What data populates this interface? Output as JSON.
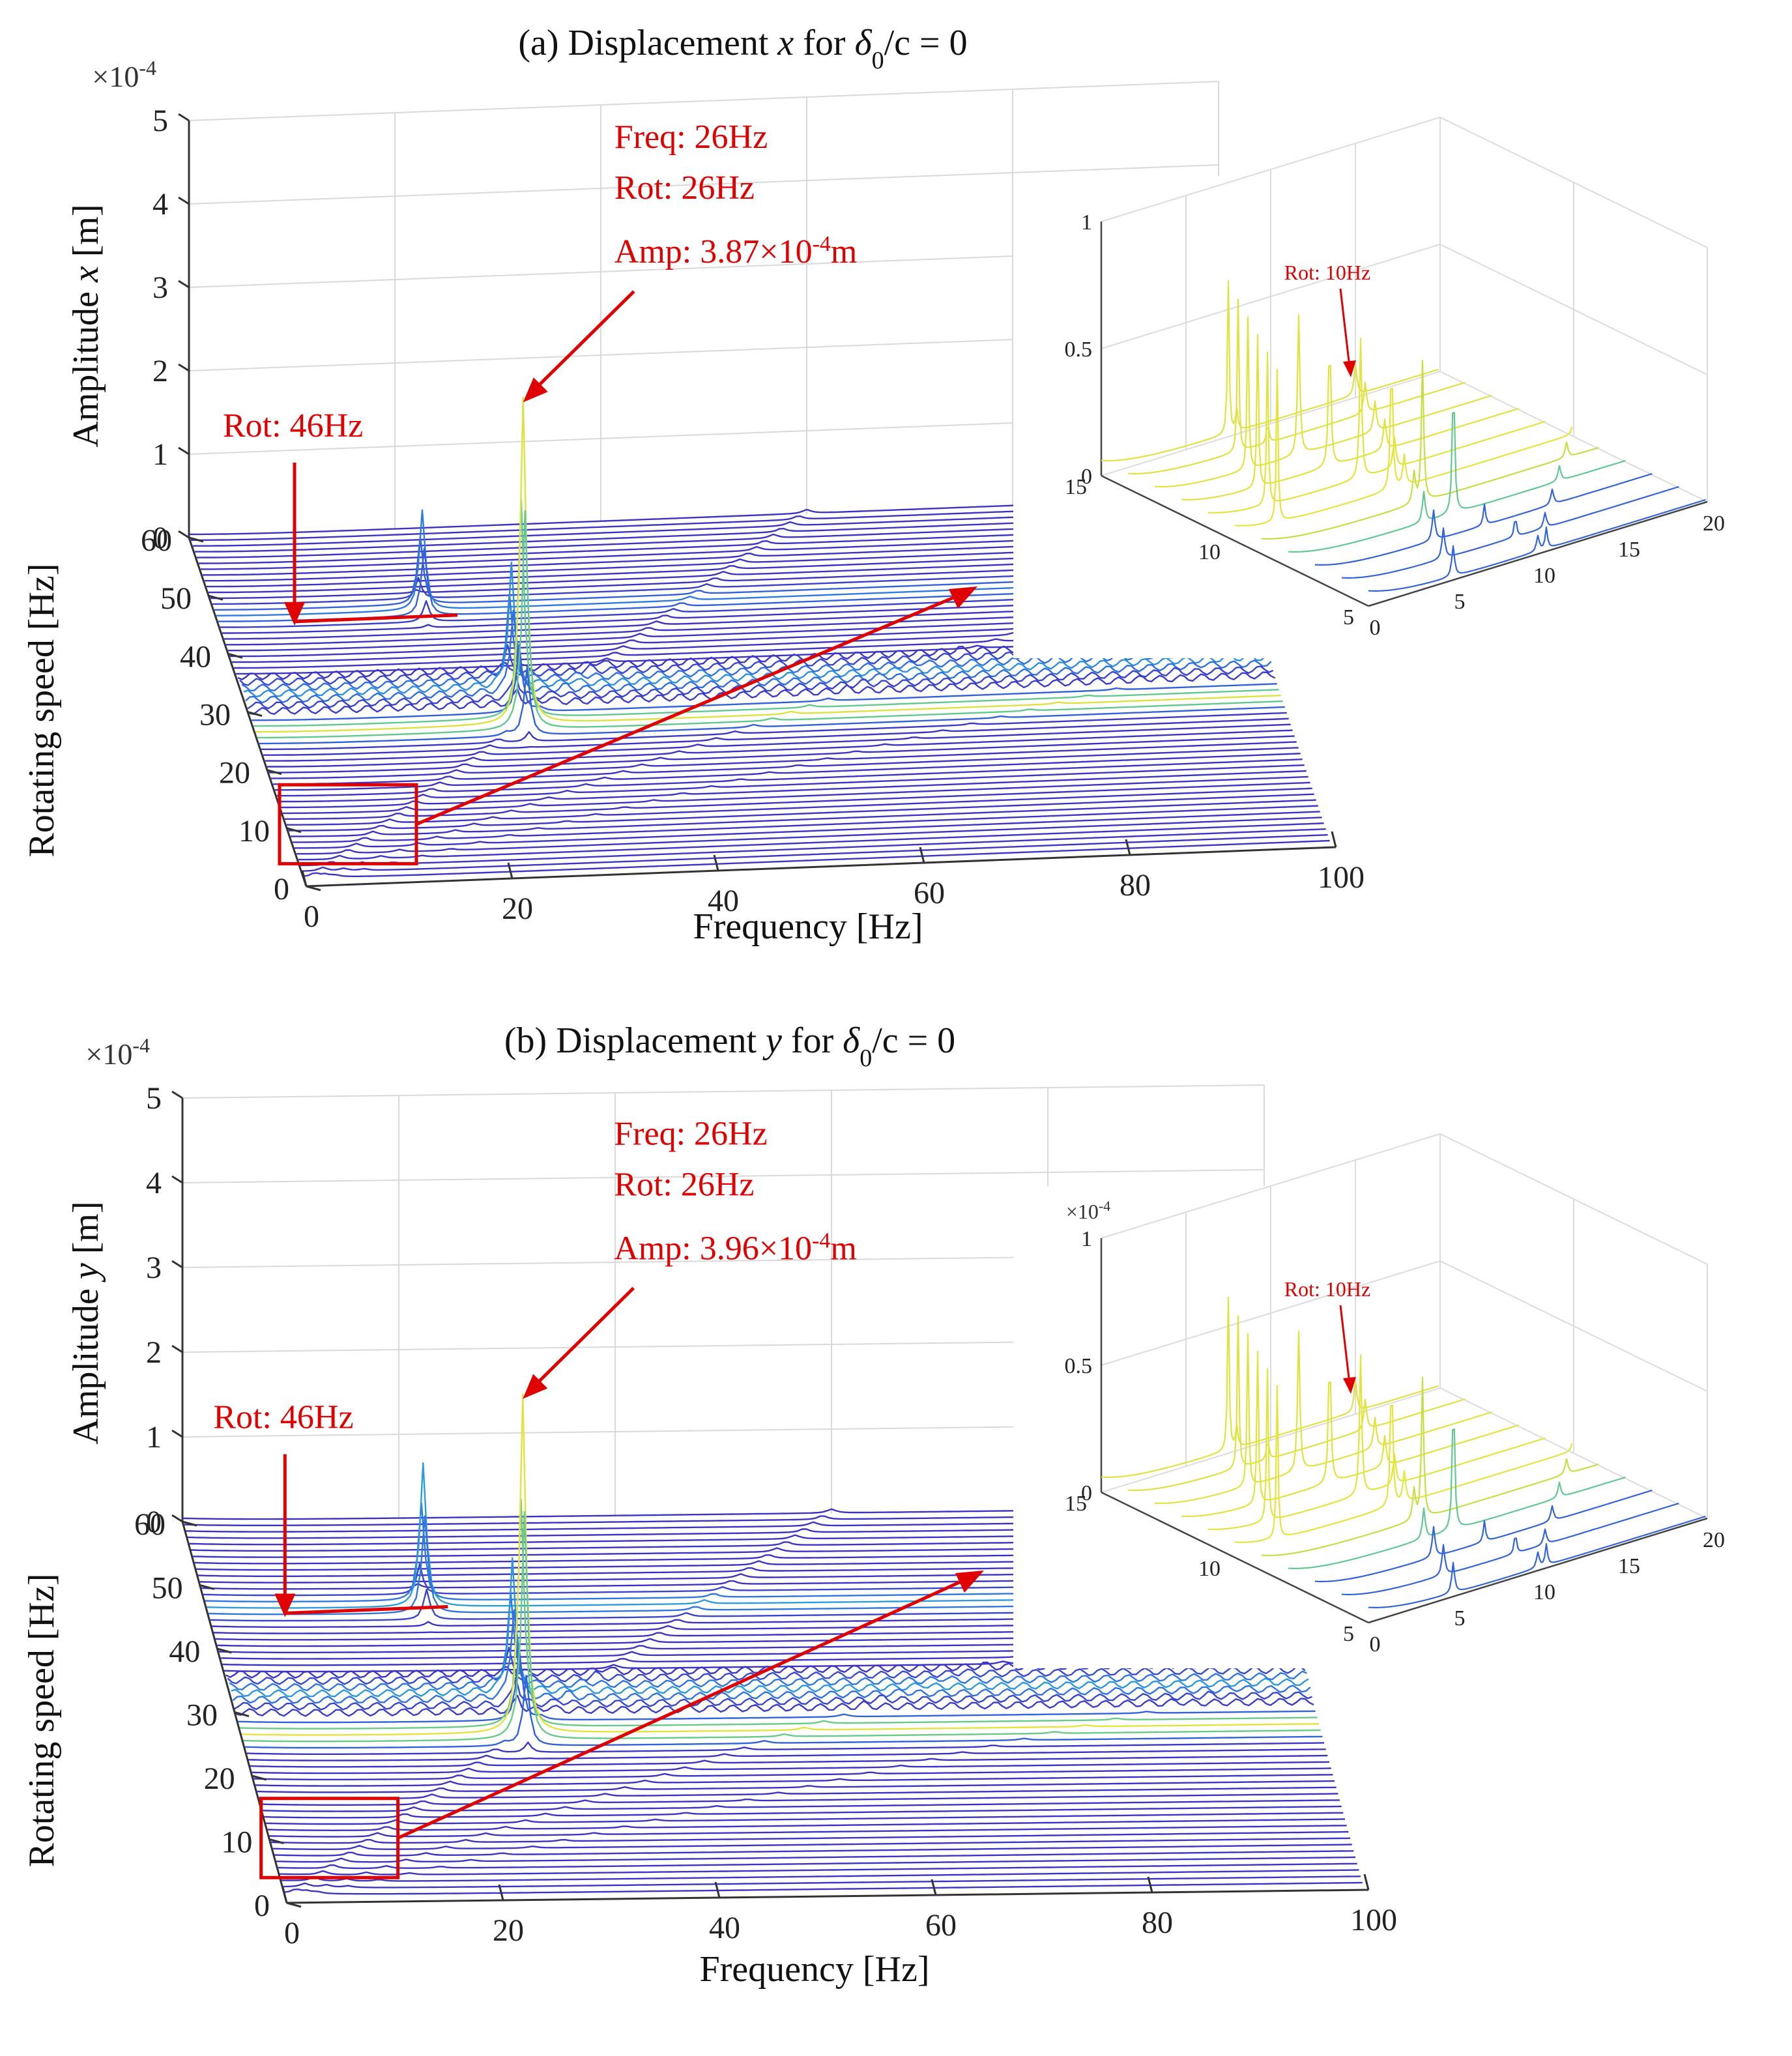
{
  "chart_data": [
    {
      "type": "waterfall-3d",
      "panel": "a",
      "title_parts": [
        "(a) Displacement ",
        "x",
        " for ",
        "δ",
        "0",
        "/c = 0"
      ],
      "xlabel": "Frequency [Hz]",
      "ylabel": "Rotating speed [Hz]",
      "zlabel_parts": [
        "Amplitude ",
        "x",
        " [m]"
      ],
      "z_multiplier": [
        "×10",
        "-4"
      ],
      "xlim": [
        0,
        100
      ],
      "ylim": [
        0,
        60
      ],
      "zlim": [
        0,
        5
      ],
      "xticks": [
        "0",
        "20",
        "40",
        "60",
        "80",
        "100"
      ],
      "yticks": [
        "0",
        "10",
        "20",
        "30",
        "40",
        "50",
        "60"
      ],
      "zticks": [
        "0",
        "1",
        "2",
        "3",
        "4",
        "5"
      ],
      "colormap": [
        "#3f2fc0",
        "#2f6fe0",
        "#28b8d8",
        "#9ad84a",
        "#f4e53a"
      ],
      "peaks": [
        {
          "freq": 26,
          "rot": 26,
          "amp": 3.87
        },
        {
          "freq": 20,
          "rot": 46,
          "amp": 1.2
        },
        {
          "freq": 26,
          "rot": 32,
          "amp": 1.5
        }
      ],
      "peak_annotation": {
        "lines": [
          "Freq: 26Hz",
          "Rot: 26Hz"
        ],
        "amp_prefix": "Amp: 3.87",
        "amp_times": "×10",
        "amp_exp": "-4",
        "amp_unit": "m"
      },
      "rot_annotation": "Rot: 46Hz",
      "inset": {
        "xlim": [
          0,
          20
        ],
        "ylim": [
          5,
          15
        ],
        "zlim": [
          0,
          1
        ],
        "xticks": [
          "0",
          "5",
          "10",
          "15",
          "20"
        ],
        "yticks": [
          "5",
          "10",
          "15"
        ],
        "zticks": [
          "0",
          "0.5",
          "1"
        ],
        "z_multiplier": null,
        "annotation": "Rot: 10Hz"
      }
    },
    {
      "type": "waterfall-3d",
      "panel": "b",
      "title_parts": [
        "(b) Displacement ",
        "y",
        " for ",
        "δ",
        "0",
        "/c = 0"
      ],
      "xlabel": "Frequency [Hz]",
      "ylabel": "Rotating speed [Hz]",
      "zlabel_parts": [
        "Amplitude ",
        "y",
        " [m]"
      ],
      "z_multiplier": [
        "×10",
        "-4"
      ],
      "xlim": [
        0,
        100
      ],
      "ylim": [
        0,
        60
      ],
      "zlim": [
        0,
        5
      ],
      "xticks": [
        "0",
        "20",
        "40",
        "60",
        "80",
        "100"
      ],
      "yticks": [
        "0",
        "10",
        "20",
        "30",
        "40",
        "50",
        "60"
      ],
      "zticks": [
        "0",
        "1",
        "2",
        "3",
        "4",
        "5"
      ],
      "colormap": [
        "#3f2fc0",
        "#2f6fe0",
        "#28b8d8",
        "#9ad84a",
        "#f4e53a"
      ],
      "peaks": [
        {
          "freq": 26,
          "rot": 26,
          "amp": 3.96
        },
        {
          "freq": 20,
          "rot": 46,
          "amp": 1.7
        },
        {
          "freq": 26,
          "rot": 32,
          "amp": 1.6
        }
      ],
      "peak_annotation": {
        "lines": [
          "Freq: 26Hz",
          "Rot: 26Hz"
        ],
        "amp_prefix": "Amp: 3.96",
        "amp_times": "×10",
        "amp_exp": "-4",
        "amp_unit": "m"
      },
      "rot_annotation": "Rot: 46Hz",
      "inset": {
        "xlim": [
          0,
          20
        ],
        "ylim": [
          5,
          15
        ],
        "zlim": [
          0,
          1
        ],
        "xticks": [
          "0",
          "5",
          "10",
          "15",
          "20"
        ],
        "yticks": [
          "5",
          "10",
          "15"
        ],
        "zticks": [
          "0",
          "0.5",
          "1"
        ],
        "z_multiplier": [
          "×10",
          "-4"
        ],
        "annotation": "Rot: 10Hz"
      }
    }
  ]
}
